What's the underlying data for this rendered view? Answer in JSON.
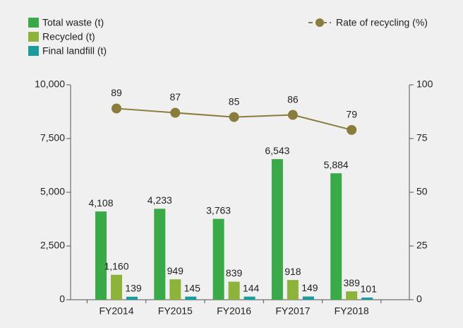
{
  "chart_data": {
    "type": "bar",
    "categories": [
      "FY2014",
      "FY2015",
      "FY2016",
      "FY2017",
      "FY2018"
    ],
    "series": [
      {
        "name": "Total waste (t)",
        "color": "#3aaa48",
        "values": [
          4108,
          4233,
          3763,
          6543,
          5884
        ],
        "value_labels": [
          "4,108",
          "4,233",
          "3,763",
          "6,543",
          "5,884"
        ]
      },
      {
        "name": "Recycled (t)",
        "color": "#8db33a",
        "values": [
          1160,
          949,
          839,
          918,
          389
        ],
        "value_labels": [
          "1,160",
          "949",
          "839",
          "918",
          "389"
        ]
      },
      {
        "name": "Final landfill (t)",
        "color": "#1a9c9e",
        "values": [
          139,
          145,
          144,
          149,
          101
        ]
      },
      {
        "name": "Rate of recycling (%)",
        "color": "#8a7d3c",
        "type": "line",
        "axis": "y2",
        "values": [
          89,
          87,
          85,
          86,
          79
        ]
      }
    ],
    "ylim": [
      0,
      10000
    ],
    "yticks": [
      0,
      {
        "value": 2500,
        "label": "2,500"
      },
      {
        "value": 5000,
        "label": "5,000"
      },
      {
        "value": 7500,
        "label": "7,500"
      },
      {
        "value": 10000,
        "label": "10,000"
      }
    ],
    "y2lim": [
      0,
      100
    ],
    "y2ticks": [
      0,
      25,
      50,
      75,
      100
    ],
    "grid": false
  }
}
